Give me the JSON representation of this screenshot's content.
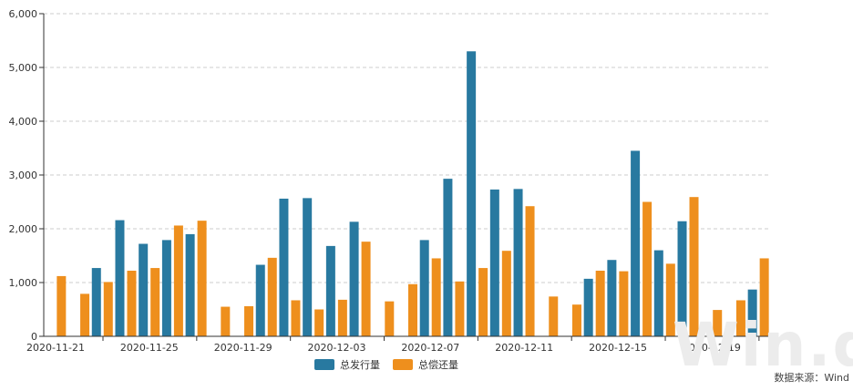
{
  "watermark": "Win.d",
  "source": "数据来源：Wind",
  "colors": {
    "issue": "#2879a0",
    "repay": "#ee8f1d",
    "grid": "#cccccc",
    "axis": "#333333"
  },
  "chart_data": {
    "type": "bar",
    "title": "",
    "xlabel": "",
    "ylabel": "",
    "ylim": [
      0,
      6000
    ],
    "yticks": [
      0,
      1000,
      2000,
      3000,
      4000,
      5000,
      6000
    ],
    "ytick_labels": [
      "0",
      "1,000",
      "2,000",
      "3,000",
      "4,000",
      "5,000",
      "6,000"
    ],
    "grid": true,
    "legend_position": "bottom-center",
    "categories": [
      "2020-11-21",
      "2020-11-22",
      "2020-11-23",
      "2020-11-24",
      "2020-11-25",
      "2020-11-26",
      "2020-11-27",
      "2020-11-28",
      "2020-11-29",
      "2020-11-30",
      "2020-12-01",
      "2020-12-02",
      "2020-12-03",
      "2020-12-04",
      "2020-12-05",
      "2020-12-06",
      "2020-12-07",
      "2020-12-08",
      "2020-12-09",
      "2020-12-10",
      "2020-12-11",
      "2020-12-12",
      "2020-12-13",
      "2020-12-14",
      "2020-12-15",
      "2020-12-16",
      "2020-12-17",
      "2020-12-18",
      "2020-12-19",
      "2020-12-20",
      "2020-12-21"
    ],
    "xtick_labels": [
      "2020-11-21",
      "",
      "",
      "",
      "2020-11-25",
      "",
      "",
      "",
      "2020-11-29",
      "",
      "",
      "",
      "2020-12-03",
      "",
      "",
      "",
      "2020-12-07",
      "",
      "",
      "",
      "2020-12-11",
      "",
      "",
      "",
      "2020-12-15",
      "",
      "",
      "",
      "2020-12-19",
      "",
      ""
    ],
    "series": [
      {
        "name": "总发行量",
        "color": "#2879a0",
        "values": [
          0,
          0,
          1270,
          2160,
          1720,
          1790,
          1900,
          0,
          0,
          1330,
          2560,
          2570,
          1680,
          2130,
          0,
          0,
          1790,
          2930,
          5300,
          2730,
          2740,
          0,
          0,
          1070,
          1420,
          3450,
          1600,
          2140,
          0,
          0,
          870
        ]
      },
      {
        "name": "总偿还量",
        "color": "#ee8f1d",
        "values": [
          1120,
          790,
          1010,
          1220,
          1270,
          2060,
          2150,
          550,
          560,
          1460,
          670,
          500,
          680,
          1760,
          650,
          970,
          1450,
          1020,
          1270,
          1590,
          2420,
          740,
          590,
          1220,
          1210,
          2500,
          1350,
          2590,
          490,
          670,
          1450
        ]
      }
    ]
  }
}
